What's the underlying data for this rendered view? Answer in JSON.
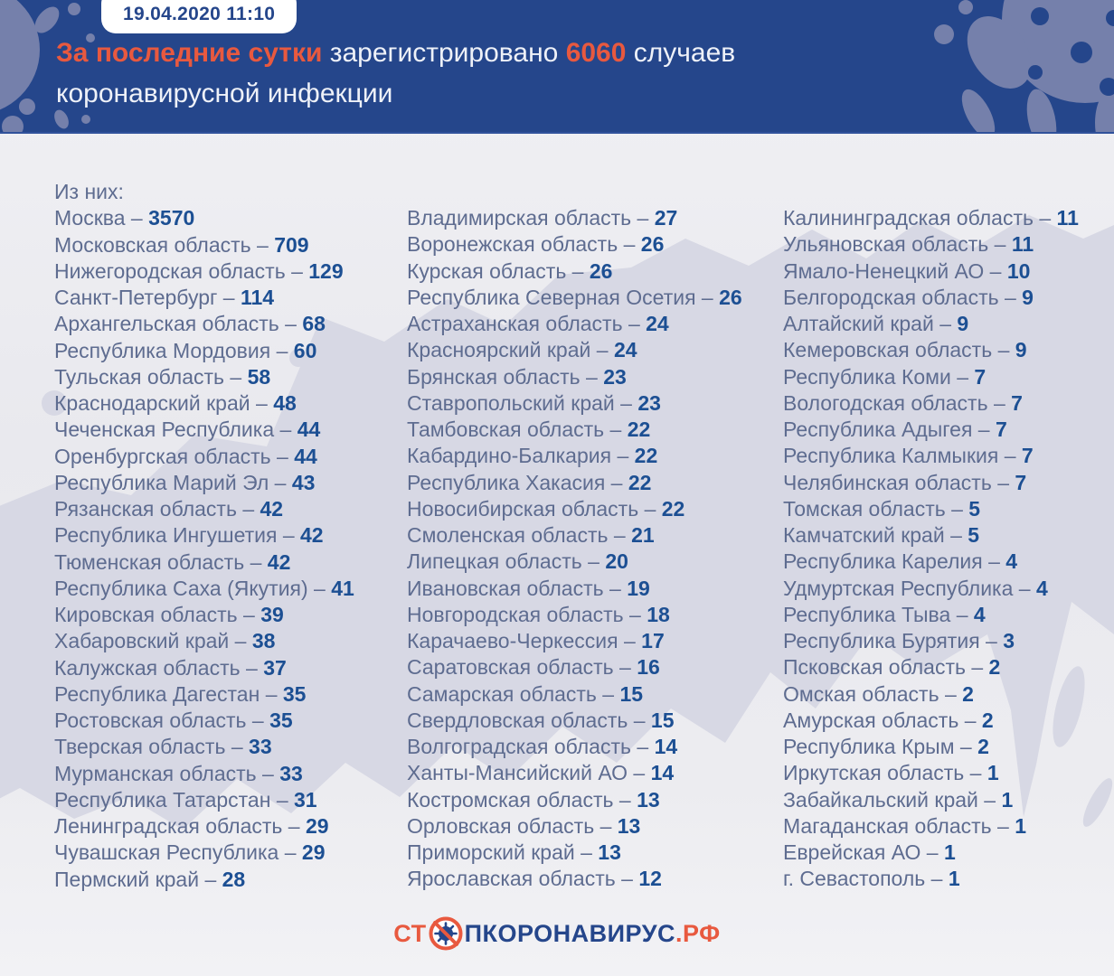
{
  "header": {
    "badge": "19.04.2020 11:10",
    "title": {
      "highlight": "За последние сутки",
      "mid": " зарегистрировано ",
      "number": "6060",
      "tail": " случаев",
      "line2": "коронавирусной инфекции"
    }
  },
  "list": {
    "intro": "Из них:",
    "separator": "–",
    "columns": [
      [
        {
          "name": "Москва",
          "value": 3570
        },
        {
          "name": "Московская область",
          "value": 709
        },
        {
          "name": "Нижегородская область",
          "value": 129
        },
        {
          "name": "Санкт-Петербург",
          "value": 114
        },
        {
          "name": "Архангельская область",
          "value": 68
        },
        {
          "name": "Республика Мордовия",
          "value": 60
        },
        {
          "name": "Тульская область",
          "value": 58
        },
        {
          "name": "Краснодарский край",
          "value": 48
        },
        {
          "name": "Чеченская Республика",
          "value": 44
        },
        {
          "name": "Оренбургская область",
          "value": 44
        },
        {
          "name": "Республика Марий Эл",
          "value": 43
        },
        {
          "name": "Рязанская область",
          "value": 42
        },
        {
          "name": "Республика Ингушетия",
          "value": 42
        },
        {
          "name": "Тюменская область",
          "value": 42
        },
        {
          "name": "Республика Саха (Якутия)",
          "value": 41
        },
        {
          "name": "Кировская область",
          "value": 39
        },
        {
          "name": "Хабаровский край",
          "value": 38
        },
        {
          "name": "Калужская область",
          "value": 37
        },
        {
          "name": "Республика Дагестан",
          "value": 35
        },
        {
          "name": "Ростовская область",
          "value": 35
        },
        {
          "name": "Тверская область",
          "value": 33
        },
        {
          "name": "Мурманская область",
          "value": 33
        },
        {
          "name": "Республика Татарстан",
          "value": 31
        },
        {
          "name": "Ленинградская область",
          "value": 29
        },
        {
          "name": "Чувашская Республика",
          "value": 29
        },
        {
          "name": "Пермский край",
          "value": 28
        }
      ],
      [
        {
          "name": "Владимирская область",
          "value": 27
        },
        {
          "name": "Воронежская область",
          "value": 26
        },
        {
          "name": "Курская область",
          "value": 26
        },
        {
          "name": "Республика Северная Осетия",
          "value": 26
        },
        {
          "name": "Астраханская область",
          "value": 24
        },
        {
          "name": "Красноярский край",
          "value": 24
        },
        {
          "name": "Брянская область",
          "value": 23
        },
        {
          "name": "Ставропольский край",
          "value": 23
        },
        {
          "name": "Тамбовская область",
          "value": 22
        },
        {
          "name": "Кабардино-Балкария",
          "value": 22
        },
        {
          "name": "Республика Хакасия",
          "value": 22
        },
        {
          "name": "Новосибирская область",
          "value": 22
        },
        {
          "name": "Смоленская область",
          "value": 21
        },
        {
          "name": "Липецкая область",
          "value": 20
        },
        {
          "name": "Ивановская область",
          "value": 19
        },
        {
          "name": "Новгородская область",
          "value": 18
        },
        {
          "name": "Карачаево-Черкессия",
          "value": 17
        },
        {
          "name": "Саратовская область",
          "value": 16
        },
        {
          "name": "Самарская область",
          "value": 15
        },
        {
          "name": "Свердловская область",
          "value": 15
        },
        {
          "name": "Волгоградская область",
          "value": 14
        },
        {
          "name": "Ханты-Мансийский АО",
          "value": 14
        },
        {
          "name": "Костромская область",
          "value": 13
        },
        {
          "name": "Орловская область",
          "value": 13
        },
        {
          "name": "Приморский край",
          "value": 13
        },
        {
          "name": "Ярославская область",
          "value": 12
        }
      ],
      [
        {
          "name": "Калининградская область",
          "value": 11
        },
        {
          "name": "Ульяновская область",
          "value": 11
        },
        {
          "name": "Ямало-Ненецкий АО",
          "value": 10
        },
        {
          "name": "Белгородская область",
          "value": 9
        },
        {
          "name": "Алтайский край",
          "value": 9
        },
        {
          "name": "Кемеровская область",
          "value": 9
        },
        {
          "name": "Республика Коми",
          "value": 7
        },
        {
          "name": "Вологодская область",
          "value": 7
        },
        {
          "name": "Республика Адыгея",
          "value": 7
        },
        {
          "name": "Республика Калмыкия",
          "value": 7
        },
        {
          "name": "Челябинская область",
          "value": 7
        },
        {
          "name": "Томская область",
          "value": 5
        },
        {
          "name": "Камчатский край",
          "value": 5
        },
        {
          "name": "Республика Карелия",
          "value": 4
        },
        {
          "name": "Удмуртская Республика",
          "value": 4
        },
        {
          "name": "Республика Тыва",
          "value": 4
        },
        {
          "name": "Республика Бурятия",
          "value": 3
        },
        {
          "name": "Псковская область",
          "value": 2
        },
        {
          "name": "Омская область",
          "value": 2
        },
        {
          "name": "Амурская область",
          "value": 2
        },
        {
          "name": "Республика Крым",
          "value": 2
        },
        {
          "name": "Иркутская область",
          "value": 1
        },
        {
          "name": "Забайкальский край",
          "value": 1
        },
        {
          "name": "Магаданская область",
          "value": 1
        },
        {
          "name": "Еврейская АО",
          "value": 1
        },
        {
          "name": "г. Севастополь",
          "value": 1
        }
      ]
    ]
  },
  "footer": {
    "logo": {
      "prefix": "СТ",
      "icon": "no-virus-icon",
      "main": "ПКОРОНАВИРУС",
      "suffix": ".РФ"
    }
  },
  "icons": {
    "header_left": "virus-splatter-icon",
    "header_right": "virus-blob-icon",
    "logo": "no-virus-icon"
  },
  "colors": {
    "header_bg": "#25468b",
    "accent_orange": "#e8593f",
    "label_text": "#5e6c90",
    "value_text": "#1c4f93",
    "map_silhouette": "#d7d8e4",
    "deco_blue": "#7580ab"
  }
}
